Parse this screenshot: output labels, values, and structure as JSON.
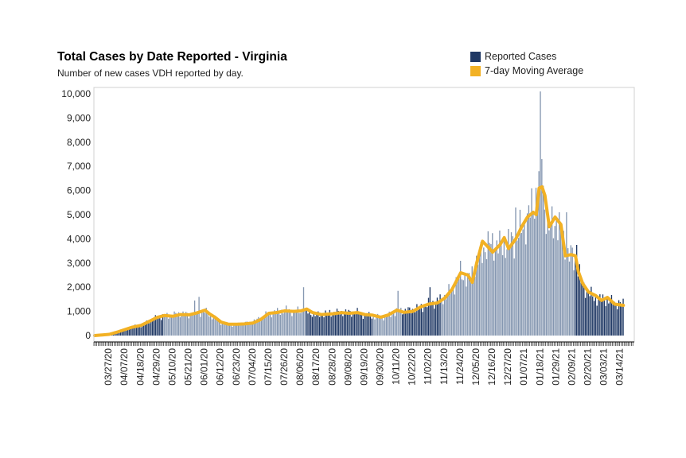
{
  "chart_data": {
    "type": "bar",
    "title": "Total Cases by Date Reported - Virginia",
    "subtitle": "Number of new cases VDH reported by day.",
    "xlabel": "",
    "ylabel": "",
    "ylim": [
      0,
      10000
    ],
    "yticks": [
      0,
      1000,
      2000,
      3000,
      4000,
      5000,
      6000,
      7000,
      8000,
      9000,
      10000
    ],
    "ytick_labels": [
      "0",
      "1,000",
      "2,000",
      "3,000",
      "4,000",
      "5,000",
      "6,000",
      "7,000",
      "8,000",
      "9,000",
      "10,000"
    ],
    "x_tick_labels": [
      "03/27/20",
      "04/07/20",
      "04/18/20",
      "04/29/20",
      "05/10/20",
      "05/21/20",
      "06/01/20",
      "06/12/20",
      "06/23/20",
      "07/04/20",
      "07/15/20",
      "07/26/20",
      "08/06/20",
      "08/17/20",
      "08/28/20",
      "09/08/20",
      "09/19/20",
      "09/30/20",
      "10/11/20",
      "10/22/20",
      "11/02/20",
      "11/13/20",
      "11/24/20",
      "12/05/20",
      "12/16/20",
      "12/27/20",
      "01/07/21",
      "01/18/21",
      "01/29/21",
      "02/09/21",
      "02/20/21",
      "03/03/21",
      "03/14/21"
    ],
    "start_date": "2020-03-17",
    "end_date": "2021-03-23",
    "last_reported_date": "2021-03-16",
    "reported_cases_points": [
      [
        "2020-03-17",
        10
      ],
      [
        "2020-03-20",
        30
      ],
      [
        "2020-03-27",
        80
      ],
      [
        "2020-04-03",
        200
      ],
      [
        "2020-04-07",
        250
      ],
      [
        "2020-04-12",
        350
      ],
      [
        "2020-04-18",
        420
      ],
      [
        "2020-04-24",
        600
      ],
      [
        "2020-04-29",
        750
      ],
      [
        "2020-05-05",
        800
      ],
      [
        "2020-05-10",
        850
      ],
      [
        "2020-05-16",
        900
      ],
      [
        "2020-05-21",
        850
      ],
      [
        "2020-05-26",
        950
      ],
      [
        "2020-06-01",
        1000
      ],
      [
        "2020-06-06",
        800
      ],
      [
        "2020-06-12",
        550
      ],
      [
        "2020-06-17",
        450
      ],
      [
        "2020-06-23",
        450
      ],
      [
        "2020-07-04",
        550
      ],
      [
        "2020-07-10",
        750
      ],
      [
        "2020-07-15",
        900
      ],
      [
        "2020-07-26",
        1050
      ],
      [
        "2020-08-02",
        1000
      ],
      [
        "2020-08-06",
        1000
      ],
      [
        "2020-08-12",
        950
      ],
      [
        "2020-08-17",
        850
      ],
      [
        "2020-08-28",
        950
      ],
      [
        "2020-09-08",
        950
      ],
      [
        "2020-09-14",
        950
      ],
      [
        "2020-09-19",
        850
      ],
      [
        "2020-09-24",
        800
      ],
      [
        "2020-09-30",
        750
      ],
      [
        "2020-10-05",
        800
      ],
      [
        "2020-10-11",
        1000
      ],
      [
        "2020-10-22",
        1050
      ],
      [
        "2020-11-02",
        1300
      ],
      [
        "2020-11-08",
        1400
      ],
      [
        "2020-11-13",
        1600
      ],
      [
        "2020-11-18",
        1900
      ],
      [
        "2020-11-24",
        2600
      ],
      [
        "2020-11-30",
        2300
      ],
      [
        "2020-12-05",
        3000
      ],
      [
        "2020-12-10",
        3600
      ],
      [
        "2020-12-16",
        3800
      ],
      [
        "2020-12-21",
        3700
      ],
      [
        "2020-12-27",
        3800
      ],
      [
        "2021-01-01",
        4000
      ],
      [
        "2021-01-07",
        4600
      ],
      [
        "2021-01-12",
        5200
      ],
      [
        "2021-01-15",
        5800
      ],
      [
        "2021-01-18",
        6000
      ],
      [
        "2021-01-21",
        5500
      ],
      [
        "2021-01-24",
        4400
      ],
      [
        "2021-01-29",
        4800
      ],
      [
        "2021-02-03",
        3900
      ],
      [
        "2021-02-06",
        3300
      ],
      [
        "2021-02-09",
        3300
      ],
      [
        "2021-02-13",
        2700
      ],
      [
        "2021-02-16",
        2100
      ],
      [
        "2021-02-20",
        1800
      ],
      [
        "2021-02-25",
        1500
      ],
      [
        "2021-03-03",
        1500
      ],
      [
        "2021-03-08",
        1400
      ],
      [
        "2021-03-16",
        1300
      ]
    ],
    "reported_cases_spikes": [
      [
        "2020-05-25",
        1450
      ],
      [
        "2020-05-28",
        1600
      ],
      [
        "2020-08-08",
        2000
      ],
      [
        "2020-10-12",
        1850
      ],
      [
        "2020-11-03",
        2000
      ],
      [
        "2021-01-01",
        5300
      ],
      [
        "2021-01-17",
        6800
      ],
      [
        "2021-01-18",
        10100
      ],
      [
        "2021-01-19",
        7300
      ],
      [
        "2021-01-20",
        6200
      ],
      [
        "2021-02-05",
        5100
      ],
      [
        "2021-02-12",
        3750
      ]
    ],
    "moving_average_points": [
      [
        "2020-03-17",
        0
      ],
      [
        "2020-03-27",
        50
      ],
      [
        "2020-04-02",
        150
      ],
      [
        "2020-04-07",
        250
      ],
      [
        "2020-04-12",
        350
      ],
      [
        "2020-04-18",
        420
      ],
      [
        "2020-04-24",
        600
      ],
      [
        "2020-04-29",
        750
      ],
      [
        "2020-05-04",
        830
      ],
      [
        "2020-05-10",
        800
      ],
      [
        "2020-05-15",
        870
      ],
      [
        "2020-05-21",
        860
      ],
      [
        "2020-05-26",
        930
      ],
      [
        "2020-06-01",
        1050
      ],
      [
        "2020-06-04",
        900
      ],
      [
        "2020-06-08",
        750
      ],
      [
        "2020-06-12",
        560
      ],
      [
        "2020-06-17",
        470
      ],
      [
        "2020-06-23",
        470
      ],
      [
        "2020-06-28",
        480
      ],
      [
        "2020-07-04",
        520
      ],
      [
        "2020-07-09",
        650
      ],
      [
        "2020-07-15",
        920
      ],
      [
        "2020-07-20",
        950
      ],
      [
        "2020-07-26",
        1020
      ],
      [
        "2020-08-01",
        1000
      ],
      [
        "2020-08-06",
        1020
      ],
      [
        "2020-08-10",
        1100
      ],
      [
        "2020-08-14",
        950
      ],
      [
        "2020-08-20",
        870
      ],
      [
        "2020-08-28",
        900
      ],
      [
        "2020-09-03",
        950
      ],
      [
        "2020-09-08",
        920
      ],
      [
        "2020-09-14",
        950
      ],
      [
        "2020-09-19",
        870
      ],
      [
        "2020-09-24",
        850
      ],
      [
        "2020-09-30",
        760
      ],
      [
        "2020-10-05",
        850
      ],
      [
        "2020-10-11",
        1050
      ],
      [
        "2020-10-16",
        960
      ],
      [
        "2020-10-22",
        1000
      ],
      [
        "2020-10-28",
        1200
      ],
      [
        "2020-11-02",
        1300
      ],
      [
        "2020-11-08",
        1350
      ],
      [
        "2020-11-13",
        1550
      ],
      [
        "2020-11-18",
        1900
      ],
      [
        "2020-11-24",
        2600
      ],
      [
        "2020-11-29",
        2500
      ],
      [
        "2020-12-02",
        2200
      ],
      [
        "2020-12-05",
        3000
      ],
      [
        "2020-12-09",
        3900
      ],
      [
        "2020-12-13",
        3650
      ],
      [
        "2020-12-16",
        3450
      ],
      [
        "2020-12-21",
        3750
      ],
      [
        "2020-12-24",
        4050
      ],
      [
        "2020-12-27",
        3600
      ],
      [
        "2021-01-01",
        4000
      ],
      [
        "2021-01-05",
        4500
      ],
      [
        "2021-01-09",
        4900
      ],
      [
        "2021-01-13",
        5100
      ],
      [
        "2021-01-15",
        5000
      ],
      [
        "2021-01-17",
        6100
      ],
      [
        "2021-01-19",
        6150
      ],
      [
        "2021-01-21",
        5800
      ],
      [
        "2021-01-24",
        4500
      ],
      [
        "2021-01-28",
        4900
      ],
      [
        "2021-02-01",
        4600
      ],
      [
        "2021-02-04",
        3300
      ],
      [
        "2021-02-08",
        3350
      ],
      [
        "2021-02-11",
        3300
      ],
      [
        "2021-02-13",
        2650
      ],
      [
        "2021-02-16",
        2150
      ],
      [
        "2021-02-20",
        1800
      ],
      [
        "2021-02-25",
        1650
      ],
      [
        "2021-03-01",
        1450
      ],
      [
        "2021-03-05",
        1580
      ],
      [
        "2021-03-10",
        1300
      ],
      [
        "2021-03-16",
        1250
      ]
    ],
    "series": [
      {
        "name": "Reported Cases",
        "color": "#1f3864",
        "alt_color": "#8496b0"
      },
      {
        "name": "7-day Moving Average",
        "color": "#f2b124"
      }
    ],
    "legend_position": "top-right",
    "grid": false
  }
}
